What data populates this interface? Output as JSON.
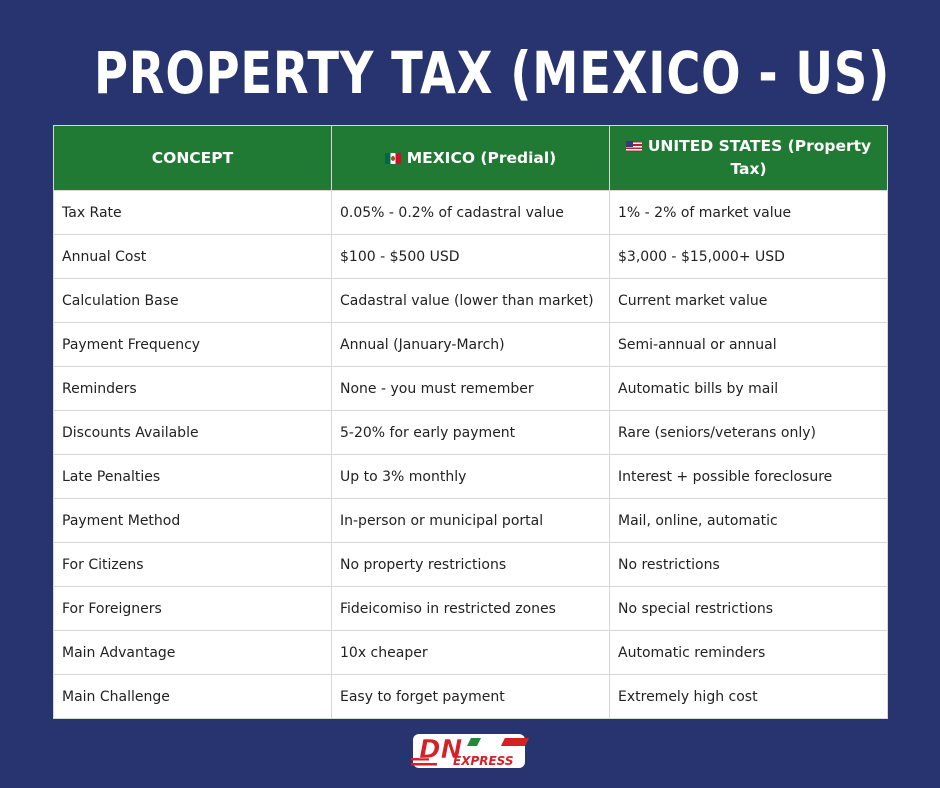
{
  "title": "PROPERTY TAX (MEXICO - US)",
  "table": {
    "headers": [
      {
        "label": "CONCEPT",
        "flag": ""
      },
      {
        "label": "MEXICO (Predial)",
        "flag": "mexico-flag-icon"
      },
      {
        "label": "UNITED STATES (Property Tax)",
        "flag": "us-flag-icon"
      }
    ],
    "rows": [
      [
        "Tax Rate",
        "0.05% - 0.2% of cadastral value",
        "1% - 2% of market value"
      ],
      [
        "Annual Cost",
        "$100 - $500 USD",
        "$3,000 - $15,000+ USD"
      ],
      [
        "Calculation Base",
        "Cadastral value (lower than market)",
        "Current market value"
      ],
      [
        "Payment Frequency",
        "Annual (January-March)",
        "Semi-annual or annual"
      ],
      [
        "Reminders",
        "None - you must remember",
        "Automatic bills by mail"
      ],
      [
        "Discounts Available",
        "5-20% for early payment",
        "Rare (seniors/veterans only)"
      ],
      [
        "Late Penalties",
        "Up to 3% monthly",
        "Interest + possible foreclosure"
      ],
      [
        "Payment Method",
        "In-person or municipal portal",
        "Mail, online, automatic"
      ],
      [
        "For Citizens",
        "No property restrictions",
        "No restrictions"
      ],
      [
        "For Foreigners",
        "Fideicomiso in restricted zones",
        "No special restrictions"
      ],
      [
        "Main Advantage",
        "10x cheaper",
        "Automatic reminders"
      ],
      [
        "Main Challenge",
        "Easy to forget payment",
        "Extremely high cost"
      ]
    ]
  },
  "logo": {
    "main": "DN",
    "sub": "EXPRESS"
  },
  "colors": {
    "background": "#28346f",
    "header_green": "#217a33",
    "logo_red": "#d42027",
    "logo_green": "#1e8a3a"
  }
}
